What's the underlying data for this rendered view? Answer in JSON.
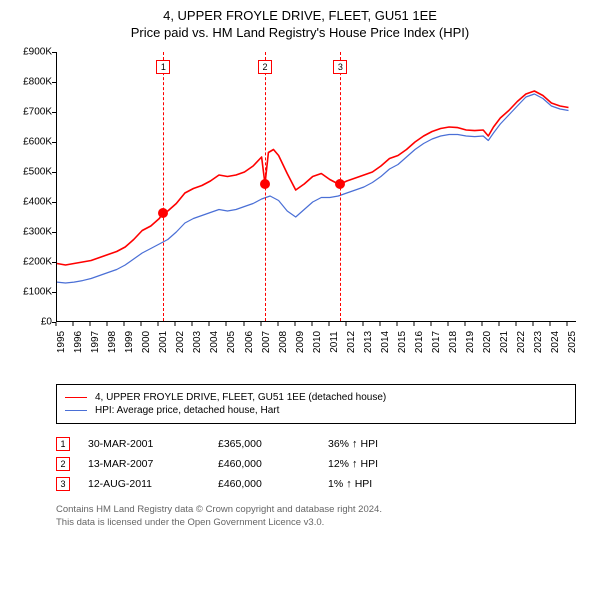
{
  "titles": {
    "main": "4, UPPER FROYLE DRIVE, FLEET, GU51 1EE",
    "sub": "Price paid vs. HM Land Registry's House Price Index (HPI)"
  },
  "chart": {
    "type": "line",
    "background_color": "#ffffff",
    "axis_color": "#000000",
    "axis_fontsize": 10,
    "ylim": [
      0,
      900000
    ],
    "ytick_step": 100000,
    "ytick_labels": [
      "£0",
      "£100K",
      "£200K",
      "£300K",
      "£400K",
      "£500K",
      "£600K",
      "£700K",
      "£800K",
      "£900K"
    ],
    "xlim": [
      1995,
      2025.5
    ],
    "xtick_years": [
      1995,
      1996,
      1997,
      1998,
      1999,
      2000,
      2001,
      2002,
      2003,
      2004,
      2005,
      2006,
      2007,
      2008,
      2009,
      2010,
      2011,
      2012,
      2013,
      2014,
      2015,
      2016,
      2017,
      2018,
      2019,
      2020,
      2021,
      2022,
      2023,
      2024,
      2025
    ],
    "series": [
      {
        "id": "price_paid",
        "label": "4, UPPER FROYLE DRIVE, FLEET, GU51 1EE (detached house)",
        "color": "#ff0000",
        "line_width": 1.6,
        "points": [
          [
            1995.0,
            195000
          ],
          [
            1995.5,
            190000
          ],
          [
            1996.0,
            195000
          ],
          [
            1996.5,
            200000
          ],
          [
            1997.0,
            205000
          ],
          [
            1997.5,
            215000
          ],
          [
            1998.0,
            225000
          ],
          [
            1998.5,
            235000
          ],
          [
            1999.0,
            250000
          ],
          [
            1999.5,
            275000
          ],
          [
            2000.0,
            305000
          ],
          [
            2000.5,
            320000
          ],
          [
            2001.0,
            345000
          ],
          [
            2001.24,
            365000
          ],
          [
            2001.5,
            370000
          ],
          [
            2002.0,
            395000
          ],
          [
            2002.5,
            430000
          ],
          [
            2003.0,
            445000
          ],
          [
            2003.5,
            455000
          ],
          [
            2004.0,
            470000
          ],
          [
            2004.5,
            490000
          ],
          [
            2005.0,
            485000
          ],
          [
            2005.5,
            490000
          ],
          [
            2006.0,
            500000
          ],
          [
            2006.5,
            520000
          ],
          [
            2007.0,
            550000
          ],
          [
            2007.2,
            460000
          ],
          [
            2007.4,
            565000
          ],
          [
            2007.7,
            575000
          ],
          [
            2008.0,
            555000
          ],
          [
            2008.5,
            495000
          ],
          [
            2009.0,
            440000
          ],
          [
            2009.5,
            460000
          ],
          [
            2010.0,
            485000
          ],
          [
            2010.5,
            495000
          ],
          [
            2011.0,
            475000
          ],
          [
            2011.5,
            460000
          ],
          [
            2011.62,
            460000
          ],
          [
            2012.0,
            470000
          ],
          [
            2012.5,
            480000
          ],
          [
            2013.0,
            490000
          ],
          [
            2013.5,
            500000
          ],
          [
            2014.0,
            520000
          ],
          [
            2014.5,
            545000
          ],
          [
            2015.0,
            555000
          ],
          [
            2015.5,
            575000
          ],
          [
            2016.0,
            600000
          ],
          [
            2016.5,
            620000
          ],
          [
            2017.0,
            635000
          ],
          [
            2017.5,
            645000
          ],
          [
            2018.0,
            650000
          ],
          [
            2018.5,
            648000
          ],
          [
            2019.0,
            640000
          ],
          [
            2019.5,
            638000
          ],
          [
            2020.0,
            640000
          ],
          [
            2020.3,
            620000
          ],
          [
            2020.6,
            650000
          ],
          [
            2021.0,
            680000
          ],
          [
            2021.5,
            705000
          ],
          [
            2022.0,
            735000
          ],
          [
            2022.5,
            760000
          ],
          [
            2023.0,
            770000
          ],
          [
            2023.5,
            755000
          ],
          [
            2024.0,
            730000
          ],
          [
            2024.5,
            720000
          ],
          [
            2025.0,
            715000
          ]
        ]
      },
      {
        "id": "hpi",
        "label": "HPI: Average price, detached house, Hart",
        "color": "#4a6fd6",
        "line_width": 1.2,
        "points": [
          [
            1995.0,
            133000
          ],
          [
            1995.5,
            130000
          ],
          [
            1996.0,
            133000
          ],
          [
            1996.5,
            138000
          ],
          [
            1997.0,
            145000
          ],
          [
            1997.5,
            155000
          ],
          [
            1998.0,
            165000
          ],
          [
            1998.5,
            175000
          ],
          [
            1999.0,
            190000
          ],
          [
            1999.5,
            210000
          ],
          [
            2000.0,
            230000
          ],
          [
            2000.5,
            245000
          ],
          [
            2001.0,
            260000
          ],
          [
            2001.5,
            275000
          ],
          [
            2002.0,
            300000
          ],
          [
            2002.5,
            330000
          ],
          [
            2003.0,
            345000
          ],
          [
            2003.5,
            355000
          ],
          [
            2004.0,
            365000
          ],
          [
            2004.5,
            375000
          ],
          [
            2005.0,
            370000
          ],
          [
            2005.5,
            375000
          ],
          [
            2006.0,
            385000
          ],
          [
            2006.5,
            395000
          ],
          [
            2007.0,
            410000
          ],
          [
            2007.5,
            420000
          ],
          [
            2008.0,
            405000
          ],
          [
            2008.5,
            370000
          ],
          [
            2009.0,
            350000
          ],
          [
            2009.5,
            375000
          ],
          [
            2010.0,
            400000
          ],
          [
            2010.5,
            415000
          ],
          [
            2011.0,
            415000
          ],
          [
            2011.5,
            420000
          ],
          [
            2012.0,
            430000
          ],
          [
            2012.5,
            440000
          ],
          [
            2013.0,
            450000
          ],
          [
            2013.5,
            465000
          ],
          [
            2014.0,
            485000
          ],
          [
            2014.5,
            510000
          ],
          [
            2015.0,
            525000
          ],
          [
            2015.5,
            550000
          ],
          [
            2016.0,
            575000
          ],
          [
            2016.5,
            595000
          ],
          [
            2017.0,
            610000
          ],
          [
            2017.5,
            620000
          ],
          [
            2018.0,
            625000
          ],
          [
            2018.5,
            625000
          ],
          [
            2019.0,
            620000
          ],
          [
            2019.5,
            618000
          ],
          [
            2020.0,
            620000
          ],
          [
            2020.3,
            605000
          ],
          [
            2020.6,
            630000
          ],
          [
            2021.0,
            660000
          ],
          [
            2021.5,
            690000
          ],
          [
            2022.0,
            720000
          ],
          [
            2022.5,
            750000
          ],
          [
            2023.0,
            760000
          ],
          [
            2023.5,
            745000
          ],
          [
            2024.0,
            720000
          ],
          [
            2024.5,
            710000
          ],
          [
            2025.0,
            705000
          ]
        ]
      }
    ],
    "sale_events": [
      {
        "idx": "1",
        "year": 2001.24,
        "price": 365000
      },
      {
        "idx": "2",
        "year": 2007.2,
        "price": 460000
      },
      {
        "idx": "3",
        "year": 2011.62,
        "price": 460000
      }
    ],
    "event_line_color": "#ff0000",
    "event_box_border": "#ff0000",
    "dot_color": "#ff0000"
  },
  "legend": {
    "rows": [
      {
        "color": "#ff0000",
        "label": "4, UPPER FROYLE DRIVE, FLEET, GU51 1EE (detached house)"
      },
      {
        "color": "#4a6fd6",
        "label": "HPI: Average price, detached house, Hart"
      }
    ]
  },
  "sales_table": {
    "rows": [
      {
        "idx": "1",
        "date": "30-MAR-2001",
        "price": "£365,000",
        "delta_pct": "36%",
        "delta_dir": "↑",
        "delta_label": "HPI"
      },
      {
        "idx": "2",
        "date": "13-MAR-2007",
        "price": "£460,000",
        "delta_pct": "12%",
        "delta_dir": "↑",
        "delta_label": "HPI"
      },
      {
        "idx": "3",
        "date": "12-AUG-2011",
        "price": "£460,000",
        "delta_pct": "1%",
        "delta_dir": "↑",
        "delta_label": "HPI"
      }
    ]
  },
  "attribution": {
    "line1": "Contains HM Land Registry data © Crown copyright and database right 2024.",
    "line2": "This data is licensed under the Open Government Licence v3.0."
  }
}
